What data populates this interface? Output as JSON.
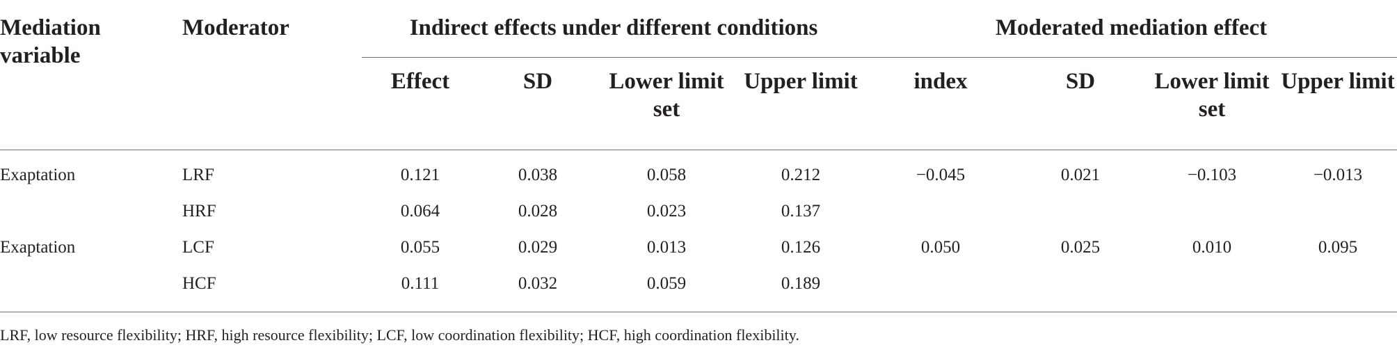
{
  "table": {
    "headers": {
      "mediation_variable": "Mediation variable",
      "moderator": "Moderator",
      "group_indirect": "Indirect effects under different conditions",
      "group_moderated": "Moderated mediation effect",
      "indirect_cols": [
        "Effect",
        "SD",
        "Lower limit set",
        "Upper limit"
      ],
      "moderated_cols": [
        "index",
        "SD",
        "Lower limit set",
        "Upper limit"
      ]
    },
    "rows": [
      {
        "mediation": "Exaptation",
        "moderator": "LRF",
        "effect": "0.121",
        "sd": "0.038",
        "lower": "0.058",
        "upper": "0.212",
        "index": "−0.045",
        "m_sd": "0.021",
        "m_lower": "−0.103",
        "m_upper": "−0.013"
      },
      {
        "mediation": "",
        "moderator": "HRF",
        "effect": "0.064",
        "sd": "0.028",
        "lower": "0.023",
        "upper": "0.137",
        "index": "",
        "m_sd": "",
        "m_lower": "",
        "m_upper": ""
      },
      {
        "mediation": "Exaptation",
        "moderator": "LCF",
        "effect": "0.055",
        "sd": "0.029",
        "lower": "0.013",
        "upper": "0.126",
        "index": "0.050",
        "m_sd": "0.025",
        "m_lower": "0.010",
        "m_upper": "0.095"
      },
      {
        "mediation": "",
        "moderator": "HCF",
        "effect": "0.111",
        "sd": "0.032",
        "lower": "0.059",
        "upper": "0.189",
        "index": "",
        "m_sd": "",
        "m_lower": "",
        "m_upper": ""
      }
    ]
  },
  "footnote": "LRF, low resource flexibility; HRF, high resource flexibility; LCF, low coordination flexibility; HCF, high coordination flexibility."
}
